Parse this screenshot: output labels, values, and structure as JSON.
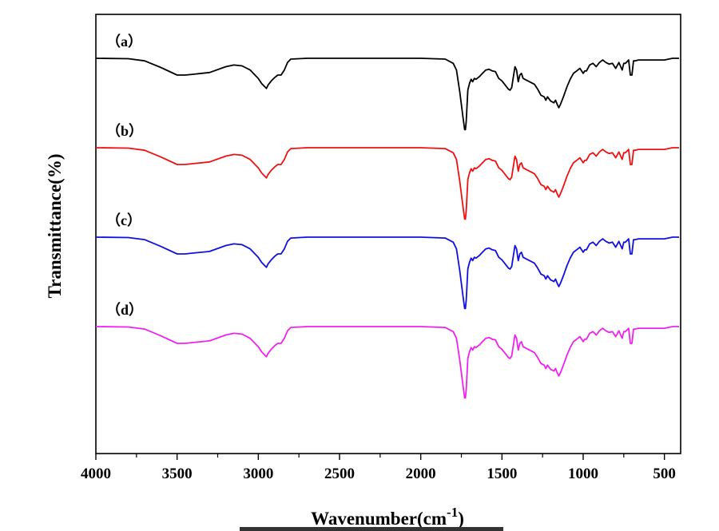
{
  "chart_data": {
    "type": "line",
    "title": "",
    "xlabel": "Wavenumber(cm",
    "xlabel_sup": "-1",
    "xlabel_close": ")",
    "ylabel": "Transmittance(%)",
    "xlim": [
      4000,
      400
    ],
    "x_reversed": true,
    "x_ticks": [
      "4000",
      "3500",
      "3000",
      "2500",
      "2000",
      "1500",
      "1000",
      "500"
    ],
    "grid": false,
    "legend": "none",
    "series": [
      {
        "label": "（a）",
        "color": "#000000"
      },
      {
        "label": "（b）",
        "color": "#ee1111"
      },
      {
        "label": "（c）",
        "color": "#1010e0"
      },
      {
        "label": "（d）",
        "color": "#ee22ee"
      }
    ],
    "x": [
      4000,
      3800,
      3700,
      3600,
      3500,
      3450,
      3400,
      3300,
      3200,
      3150,
      3100,
      3050,
      3000,
      2980,
      2960,
      2950,
      2940,
      2920,
      2900,
      2880,
      2860,
      2840,
      2820,
      2800,
      2700,
      2500,
      2200,
      2000,
      1850,
      1800,
      1780,
      1760,
      1740,
      1730,
      1725,
      1720,
      1710,
      1700,
      1690,
      1680,
      1670,
      1660,
      1640,
      1620,
      1600,
      1580,
      1560,
      1540,
      1520,
      1500,
      1480,
      1460,
      1450,
      1440,
      1420,
      1410,
      1400,
      1390,
      1380,
      1370,
      1350,
      1300,
      1280,
      1260,
      1240,
      1230,
      1220,
      1200,
      1180,
      1170,
      1160,
      1150,
      1140,
      1130,
      1120,
      1100,
      1080,
      1060,
      1040,
      1020,
      1000,
      990,
      980,
      960,
      940,
      920,
      900,
      880,
      860,
      840,
      820,
      800,
      780,
      760,
      750,
      740,
      720,
      710,
      700,
      690,
      680,
      660,
      600,
      500,
      450,
      410
    ],
    "values": [
      0,
      -0.5,
      -3,
      -11,
      -20,
      -20,
      -19,
      -17,
      -10,
      -8,
      -9,
      -14,
      -24,
      -30,
      -34,
      -36,
      -32,
      -27,
      -23,
      -20,
      -20,
      -14,
      -5,
      -1,
      0,
      0,
      0,
      0,
      -1,
      -6,
      -14,
      -40,
      -70,
      -85,
      -85,
      -75,
      -38,
      -30,
      -25,
      -28,
      -24,
      -25,
      -22,
      -18,
      -14,
      -13,
      -15,
      -16,
      -24,
      -27,
      -32,
      -37,
      -38,
      -35,
      -10,
      -14,
      -28,
      -20,
      -18,
      -24,
      -26,
      -31,
      -37,
      -44,
      -46,
      -50,
      -46,
      -51,
      -53,
      -50,
      -55,
      -59,
      -55,
      -50,
      -45,
      -34,
      -25,
      -18,
      -15,
      -12,
      -18,
      -15,
      -15,
      -8,
      -6,
      -10,
      -5,
      -2,
      -5,
      -7,
      -6,
      -12,
      -5,
      -14,
      -6,
      -6,
      -2,
      -20,
      -20,
      -3,
      -3,
      -2,
      -2,
      -2,
      0,
      0
    ]
  }
}
